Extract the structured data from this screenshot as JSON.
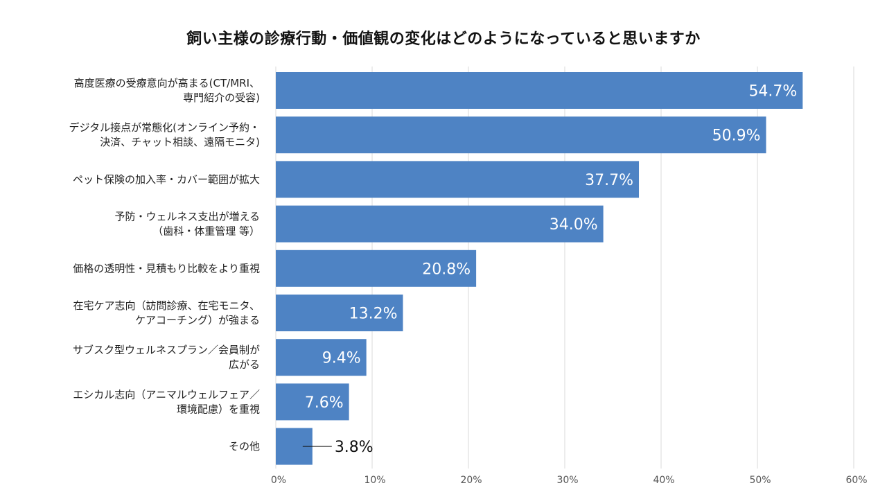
{
  "chart_data": {
    "type": "bar",
    "orientation": "horizontal",
    "title": "飼い主様の診療行動・価値観の変化はどのようになっていると思いますか",
    "categories": [
      [
        "高度医療の受療意向が高まる(CT/MRI、",
        "専門紹介の受容)"
      ],
      [
        "デジタル接点が常態化(オンライン予約・",
        "決済、チャット相談、遠隔モニタ)"
      ],
      [
        "ペット保険の加入率・カバー範囲が拡大"
      ],
      [
        "予防・ウェルネス支出が増える",
        "（歯科・体重管理 等）"
      ],
      [
        "価格の透明性・見積もり比較をより重視"
      ],
      [
        "在宅ケア志向（訪問診療、在宅モニタ、",
        "ケアコーチング）が強まる"
      ],
      [
        "サブスク型ウェルネスプラン／会員制が",
        "広がる"
      ],
      [
        "エシカル志向（アニマルウェルフェア／",
        "環境配慮）を重視"
      ],
      [
        "その他"
      ]
    ],
    "values": [
      54.7,
      50.9,
      37.7,
      34.0,
      20.8,
      13.2,
      9.4,
      7.6,
      3.8
    ],
    "value_labels": [
      "54.7%",
      "50.9%",
      "37.7%",
      "34.0%",
      "20.8%",
      "13.2%",
      "9.4%",
      "7.6%",
      "3.8%"
    ],
    "xlim": [
      0,
      60
    ],
    "x_ticks": [
      "0%",
      "10%",
      "20%",
      "30%",
      "40%",
      "50%",
      "60%"
    ],
    "xlabel": "",
    "ylabel": "",
    "grid": true,
    "legend": "none",
    "colors": {
      "bar": "#4e83c4",
      "inner_label": "#ffffff",
      "outer_label": "#111111",
      "gridline": "#d9d9d9",
      "leader_line": "#111111"
    }
  }
}
